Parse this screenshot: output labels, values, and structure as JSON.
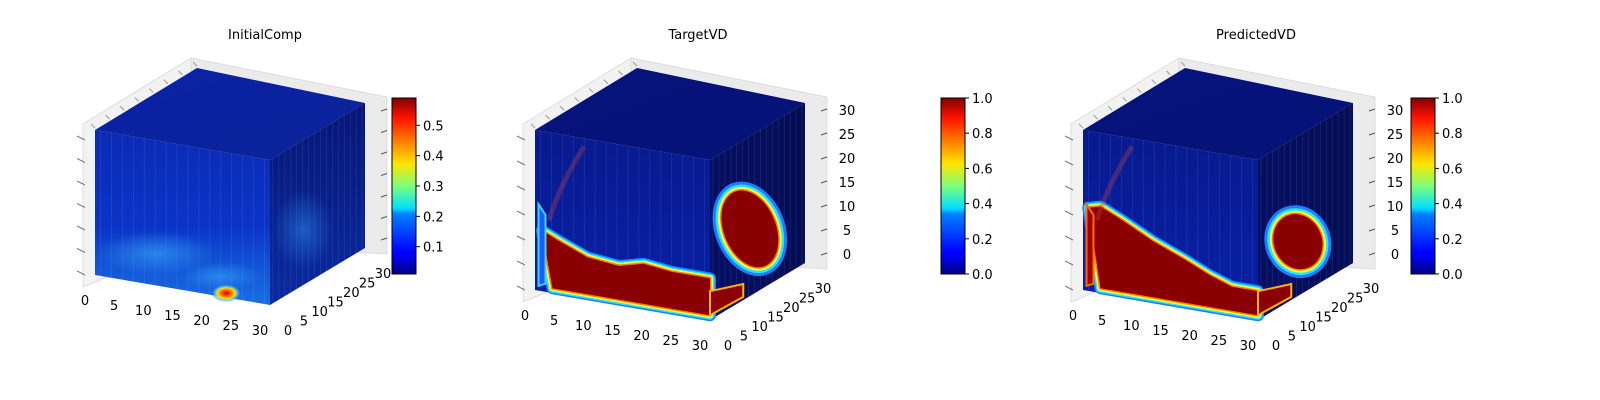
{
  "chart_data": [
    {
      "type": "voxel-3d",
      "title": "InitialComp",
      "x_ticks": [
        "0",
        "5",
        "10",
        "15",
        "20",
        "25",
        "30"
      ],
      "y_ticks": [
        "0",
        "5",
        "10",
        "15",
        "20",
        "25",
        "30"
      ],
      "z_ticks": [],
      "colorbar": {
        "min": 0.01,
        "max": 0.59,
        "ticks": [
          "0.1",
          "0.2",
          "0.3",
          "0.4",
          "0.5"
        ],
        "tick_values": [
          0.1,
          0.2,
          0.3,
          0.4,
          0.5
        ]
      },
      "pattern": "low",
      "colormap": "jet"
    },
    {
      "type": "voxel-3d",
      "title": "TargetVD",
      "x_ticks": [
        "0",
        "5",
        "10",
        "15",
        "20",
        "25",
        "30"
      ],
      "y_ticks": [
        "0",
        "5",
        "10",
        "15",
        "20",
        "25",
        "30"
      ],
      "z_ticks": [
        "0",
        "5",
        "10",
        "15",
        "20",
        "25",
        "30"
      ],
      "colorbar": {
        "min": 0.0,
        "max": 1.0,
        "ticks": [
          "0.0",
          "0.2",
          "0.4",
          "0.6",
          "0.8",
          "1.0"
        ],
        "tick_values": [
          0.0,
          0.2,
          0.4,
          0.6,
          0.8,
          1.0
        ]
      },
      "pattern": "target",
      "colormap": "jet"
    },
    {
      "type": "voxel-3d",
      "title": "PredictedVD",
      "x_ticks": [
        "0",
        "5",
        "10",
        "15",
        "20",
        "25",
        "30"
      ],
      "y_ticks": [
        "0",
        "5",
        "10",
        "15",
        "20",
        "25",
        "30"
      ],
      "z_ticks": [
        "0",
        "5",
        "10",
        "15",
        "20",
        "25",
        "30"
      ],
      "colorbar": {
        "min": 0.0,
        "max": 1.0,
        "ticks": [
          "0.0",
          "0.2",
          "0.4",
          "0.6",
          "0.8",
          "1.0"
        ],
        "tick_values": [
          0.0,
          0.2,
          0.4,
          0.6,
          0.8,
          1.0
        ]
      },
      "pattern": "predicted",
      "colormap": "jet"
    }
  ]
}
